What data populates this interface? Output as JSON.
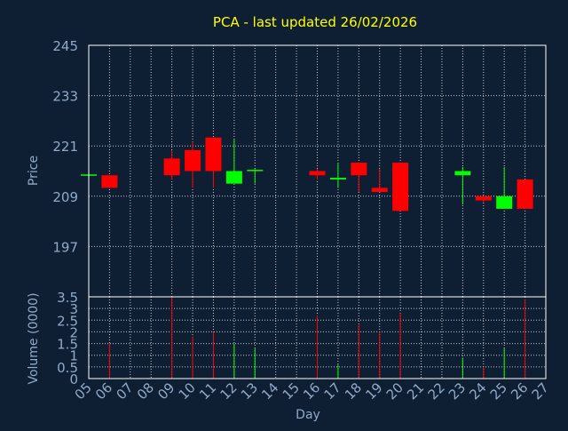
{
  "title": "PCA - last updated 26/02/2026",
  "colors": {
    "background": "#0f1f33",
    "plot_border": "#ffffff",
    "grid": "#c8c8c8",
    "title": "#ffff00",
    "axis_text": "#8faac8",
    "up": "#00ff00",
    "down": "#ff0000"
  },
  "chart_data": [
    {
      "type": "candlestick",
      "ylabel": "Price",
      "ylim": [
        185,
        245
      ],
      "yticks": [
        "197",
        "209",
        "221",
        "233",
        "245"
      ],
      "grid": true,
      "candles": [
        {
          "day": "05",
          "open": 214.2,
          "high": 214.2,
          "low": 214.2,
          "close": 214.2
        },
        {
          "day": "06",
          "open": 214.0,
          "high": 214.0,
          "low": 211.0,
          "close": 211.0
        },
        {
          "day": "09",
          "open": 218.0,
          "high": 220.0,
          "low": 213.0,
          "close": 214.0
        },
        {
          "day": "10",
          "open": 220.0,
          "high": 222.0,
          "low": 211.0,
          "close": 215.0
        },
        {
          "day": "11",
          "open": 223.0,
          "high": 223.0,
          "low": 211.0,
          "close": 215.0
        },
        {
          "day": "12",
          "open": 212.0,
          "high": 222.5,
          "low": 212.0,
          "close": 215.0
        },
        {
          "day": "13",
          "open": 215.0,
          "high": 215.5,
          "low": 212.0,
          "close": 215.3
        },
        {
          "day": "16",
          "open": 215.0,
          "high": 215.5,
          "low": 213.0,
          "close": 214.0
        },
        {
          "day": "17",
          "open": 213.0,
          "high": 217.0,
          "low": 211.0,
          "close": 213.4
        },
        {
          "day": "18",
          "open": 217.0,
          "high": 217.0,
          "low": 210.0,
          "close": 214.0
        },
        {
          "day": "19",
          "open": 211.0,
          "high": 215.5,
          "low": 210.0,
          "close": 210.0
        },
        {
          "day": "20",
          "open": 217.0,
          "high": 217.0,
          "low": 205.5,
          "close": 205.5
        },
        {
          "day": "23",
          "open": 214.0,
          "high": 216.0,
          "low": 207.0,
          "close": 215.0
        },
        {
          "day": "24",
          "open": 209.0,
          "high": 209.0,
          "low": 207.5,
          "close": 208.0
        },
        {
          "day": "25",
          "open": 206.0,
          "high": 216.0,
          "low": 206.0,
          "close": 209.0
        },
        {
          "day": "26",
          "open": 213.0,
          "high": 213.0,
          "low": 206.0,
          "close": 206.0
        }
      ]
    },
    {
      "type": "bar",
      "ylabel": "Volume (0000)",
      "xlabel": "Day",
      "ylim": [
        0,
        3.5
      ],
      "yticks": [
        "0",
        "0.5",
        "1",
        "1.5",
        "2",
        "2.5",
        "3",
        "3.5"
      ],
      "grid": true,
      "categories": [
        "05",
        "06",
        "07",
        "08",
        "09",
        "10",
        "11",
        "12",
        "13",
        "14",
        "15",
        "16",
        "17",
        "18",
        "19",
        "20",
        "21",
        "22",
        "23",
        "24",
        "25",
        "26",
        "27"
      ],
      "values": [
        0,
        1.5,
        0,
        0,
        3.5,
        1.8,
        2.0,
        1.5,
        1.3,
        0,
        0,
        2.7,
        0.6,
        2.3,
        2.0,
        2.8,
        0,
        0,
        0.9,
        0.5,
        1.3,
        3.4,
        0
      ],
      "bar_colors": [
        "",
        "down",
        "",
        "",
        "down",
        "down",
        "down",
        "up",
        "up",
        "",
        "",
        "down",
        "up",
        "down",
        "down",
        "down",
        "",
        "",
        "up",
        "down",
        "up",
        "down",
        ""
      ]
    }
  ]
}
